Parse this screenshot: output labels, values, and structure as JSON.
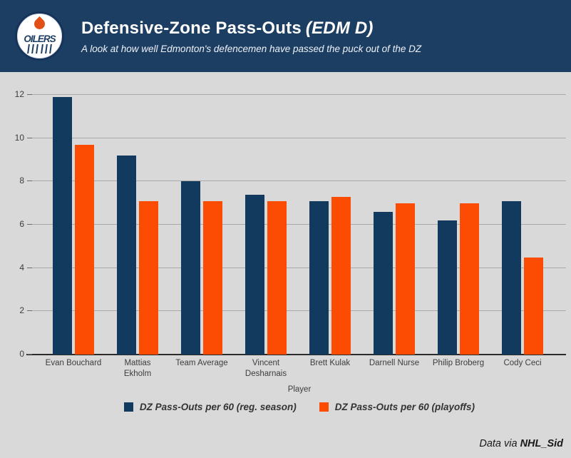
{
  "header": {
    "logo_text": "OILERS",
    "title_main": "Defensive-Zone Pass-Outs",
    "title_em": "(EDM D)",
    "subtitle": "A look at how well Edmonton's defencemen have passed the puck out of the DZ"
  },
  "colors": {
    "header_bg": "#1d3e63",
    "reg_season_navy": "#12395e",
    "playoffs_orange": "#fc4b02",
    "plot_background": "#d9d9d9",
    "gridline_gray": "#a9a9a9",
    "axis_black": "#2b2b2b"
  },
  "chart_data": {
    "type": "bar",
    "categories": [
      "Evan Bouchard",
      "Mattias\nEkholm",
      "Team Average",
      "Vincent\nDesharnais",
      "Brett Kulak",
      "Darnell Nurse",
      "Philip Broberg",
      "Cody Ceci"
    ],
    "series": [
      {
        "name": "DZ Pass-Outs per 60 (reg. season)",
        "color": "#12395e",
        "values": [
          11.9,
          9.2,
          8.0,
          7.4,
          7.1,
          6.6,
          6.2,
          7.1
        ]
      },
      {
        "name": "DZ Pass-Outs per 60 (playoffs)",
        "color": "#fc4b02",
        "values": [
          9.7,
          7.1,
          7.1,
          7.1,
          7.3,
          7.0,
          7.0,
          4.5
        ]
      }
    ],
    "title": "Defensive-Zone Pass-Outs (EDM D)",
    "xlabel": "Player",
    "ylabel": "",
    "ylim": [
      0,
      12
    ],
    "yticks": [
      0,
      2,
      4,
      6,
      8,
      10,
      12
    ],
    "grid": true,
    "legend_position": "bottom"
  },
  "footer": {
    "credit_prefix": "Data via",
    "credit_name": "NHL_Sid"
  }
}
